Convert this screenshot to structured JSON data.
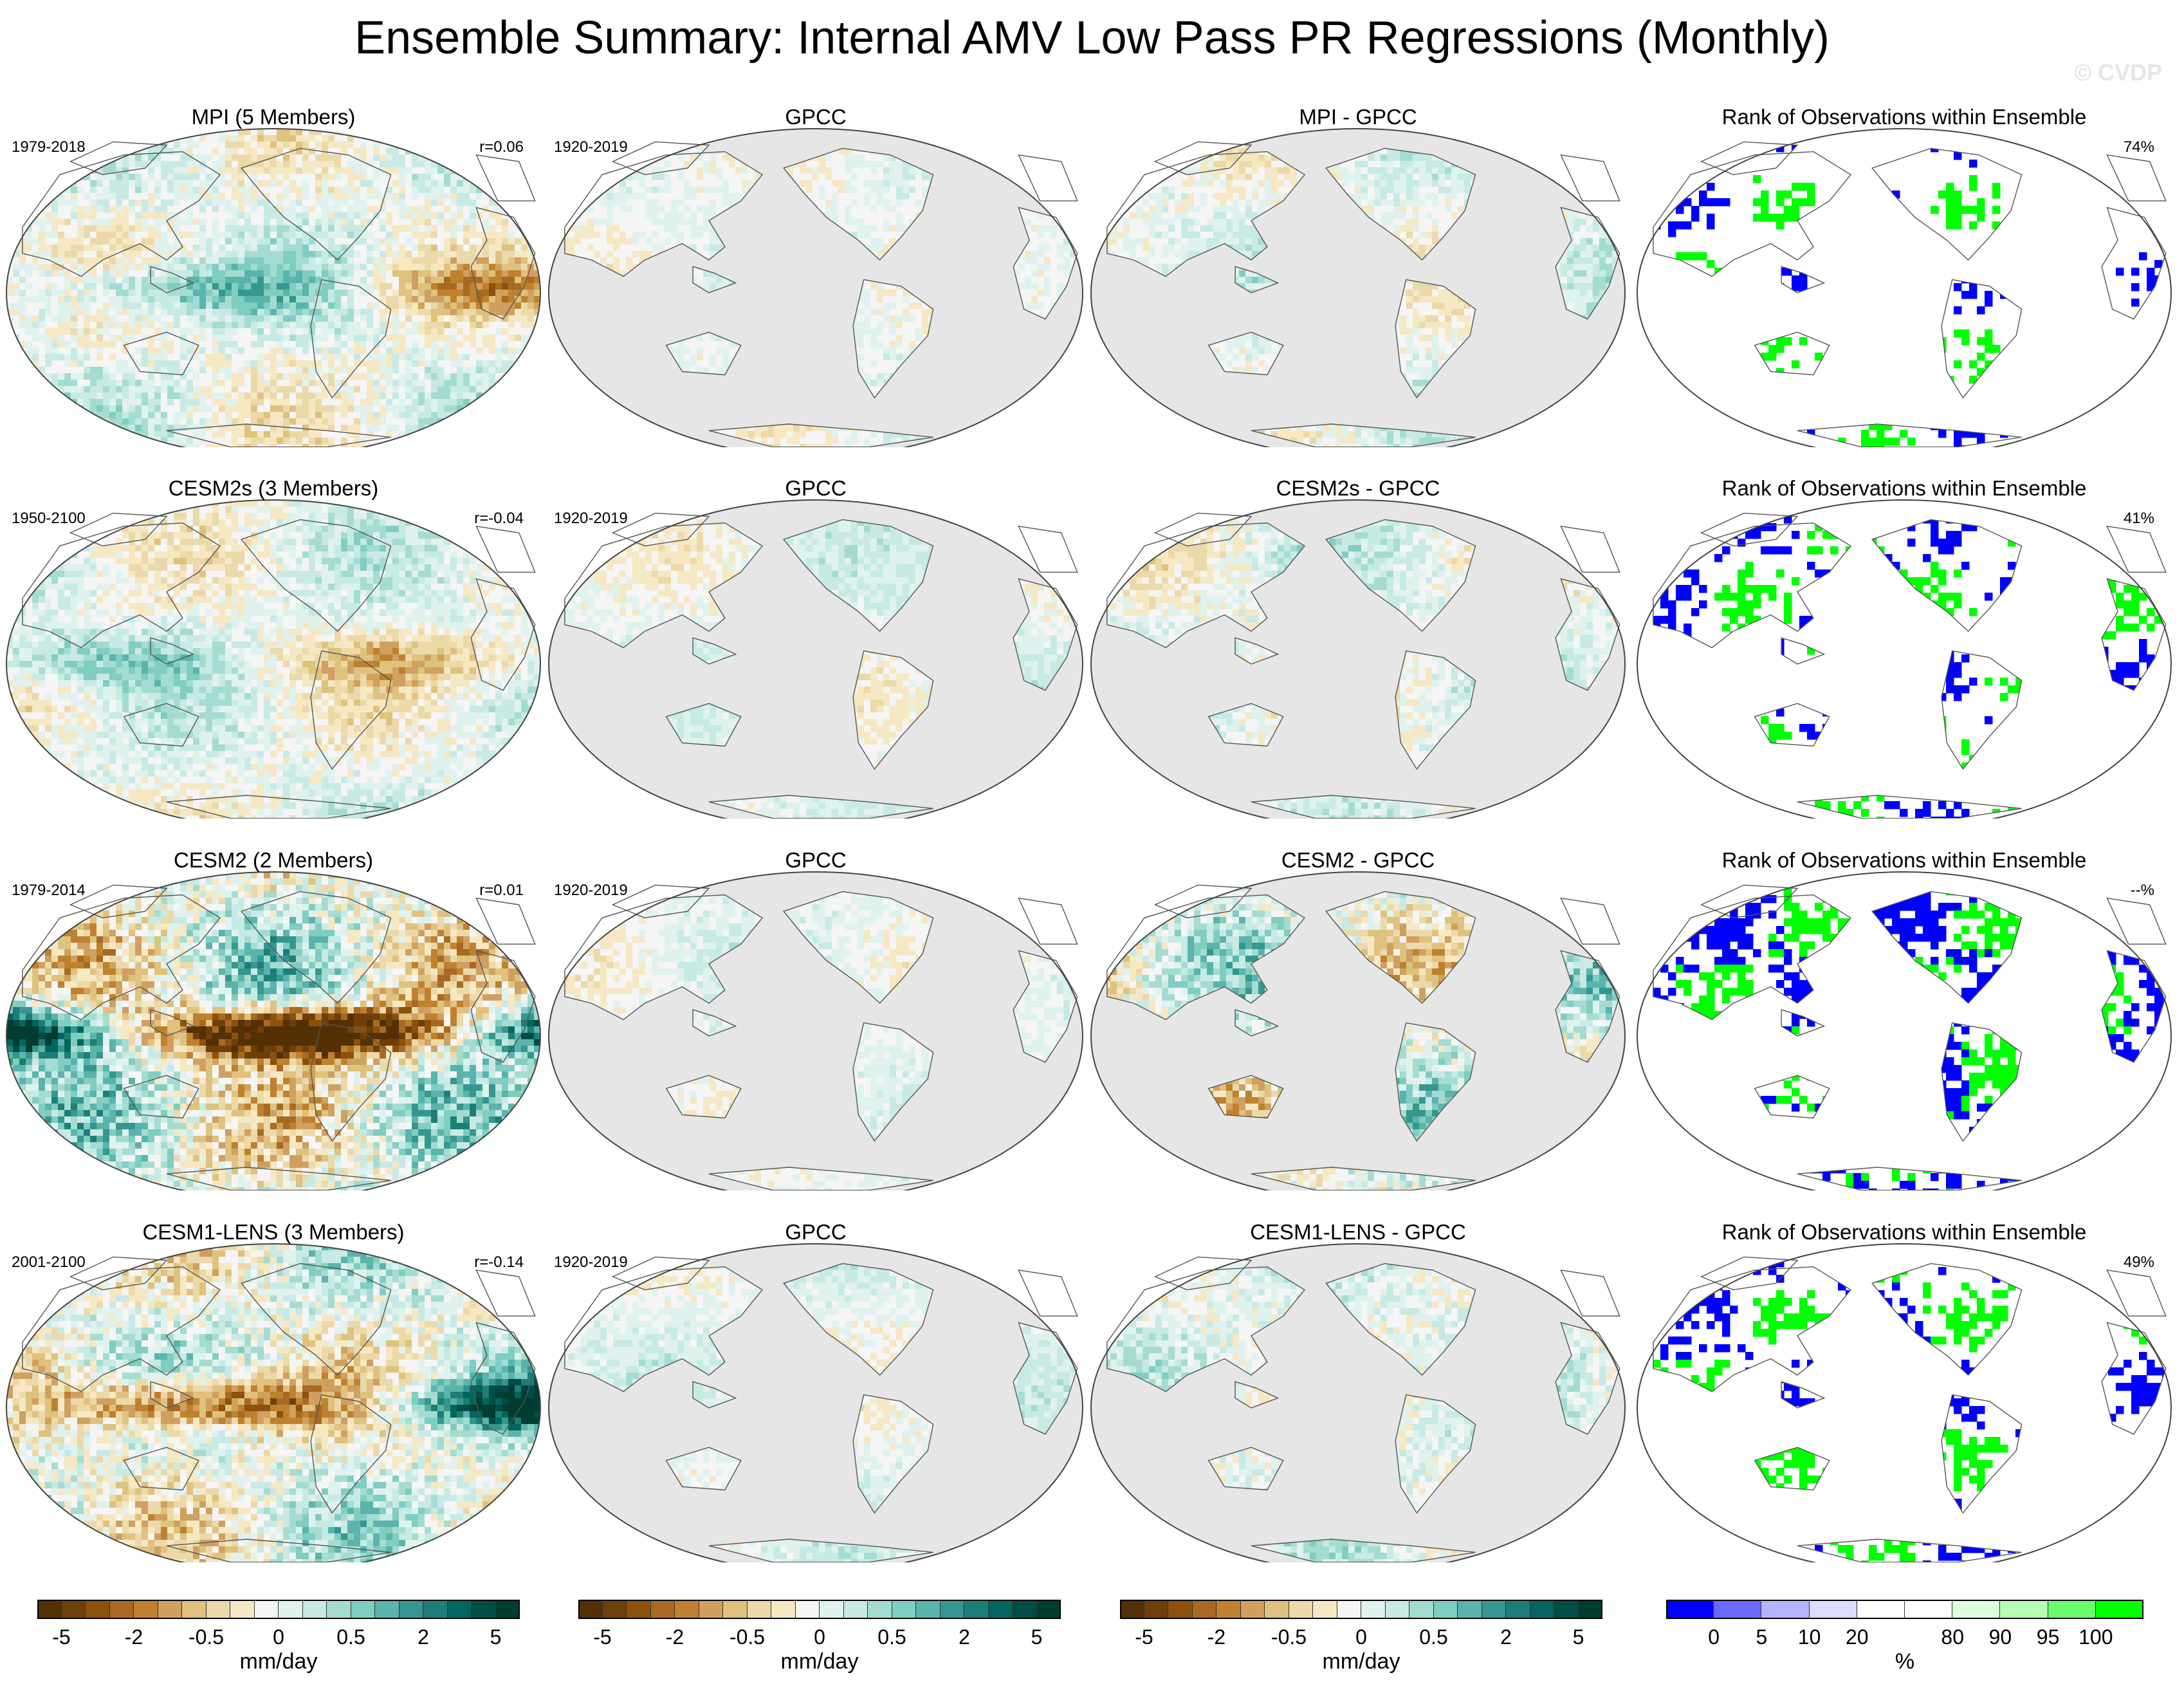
{
  "figure": {
    "title": "Ensemble Summary: Internal AMV Low Pass PR Regressions (Monthly)",
    "watermark": "© CVDP"
  },
  "rows": [
    {
      "panels": [
        {
          "title": "MPI (5 Members)",
          "left": "1979-2018",
          "right": "r=0.06",
          "kind": "model",
          "intensity": 0.55
        },
        {
          "title": "GPCC",
          "left": "1920-2019",
          "right": "",
          "kind": "obs",
          "intensity": 0.35
        },
        {
          "title": "MPI - GPCC",
          "left": "",
          "right": "",
          "kind": "diff",
          "intensity": 0.45
        },
        {
          "title": "Rank of Observations within Ensemble",
          "left": "",
          "right": "74%",
          "kind": "rank",
          "intensity": 0.35
        }
      ]
    },
    {
      "panels": [
        {
          "title": "CESM2s (3 Members)",
          "left": "1950-2100",
          "right": "r=-0.04",
          "kind": "model",
          "intensity": 0.5
        },
        {
          "title": "GPCC",
          "left": "1920-2019",
          "right": "",
          "kind": "obs",
          "intensity": 0.35
        },
        {
          "title": "CESM2s - GPCC",
          "left": "",
          "right": "",
          "kind": "diff",
          "intensity": 0.5
        },
        {
          "title": "Rank of Observations within Ensemble",
          "left": "",
          "right": "41%",
          "kind": "rank",
          "intensity": 0.6
        }
      ]
    },
    {
      "panels": [
        {
          "title": "CESM2 (2 Members)",
          "left": "1979-2014",
          "right": "r=0.01",
          "kind": "model",
          "intensity": 1.0
        },
        {
          "title": "GPCC",
          "left": "1920-2019",
          "right": "",
          "kind": "obs",
          "intensity": 0.35
        },
        {
          "title": "CESM2 - GPCC",
          "left": "",
          "right": "",
          "kind": "diff",
          "intensity": 0.85
        },
        {
          "title": "Rank of Observations within Ensemble",
          "left": "",
          "right": "--%",
          "kind": "rank",
          "intensity": 0.95
        }
      ]
    },
    {
      "panels": [
        {
          "title": "CESM1-LENS (3 Members)",
          "left": "2001-2100",
          "right": "r=-0.14",
          "kind": "model",
          "intensity": 0.8
        },
        {
          "title": "GPCC",
          "left": "1920-2019",
          "right": "",
          "kind": "obs",
          "intensity": 0.35
        },
        {
          "title": "CESM1-LENS - GPCC",
          "left": "",
          "right": "",
          "kind": "diff",
          "intensity": 0.55
        },
        {
          "title": "Rank of Observations within Ensemble",
          "left": "",
          "right": "49%",
          "kind": "rank",
          "intensity": 0.65
        }
      ]
    }
  ],
  "colorbars": {
    "precip": {
      "colors": [
        "#543005",
        "#6e3f0a",
        "#8c510a",
        "#a86a22",
        "#bf812d",
        "#d0a060",
        "#dfc27d",
        "#ecd9a9",
        "#f6e8c3",
        "#f5f5f5",
        "#dff2ee",
        "#c7eae5",
        "#a4dcd2",
        "#80cdc1",
        "#5ab4ac",
        "#35978f",
        "#1c7f77",
        "#01665e",
        "#014c44",
        "#003c30"
      ],
      "tick_labels": [
        "-5",
        "-2",
        "-0.5",
        "0",
        "0.5",
        "2",
        "5"
      ],
      "tick_index": [
        1,
        4,
        7,
        10,
        13,
        16,
        19
      ],
      "unit": "mm/day"
    },
    "rank": {
      "colors": [
        "#0000ff",
        "#6a6aff",
        "#b4b4ff",
        "#dcdcff",
        "#ffffff",
        "#ffffff",
        "#dcffdc",
        "#b4ffb4",
        "#6aff6a",
        "#00ff00"
      ],
      "tick_labels": [
        "0",
        "5",
        "10",
        "20",
        "80",
        "90",
        "95",
        "100"
      ],
      "tick_index": [
        1,
        2,
        3,
        4,
        6,
        7,
        8,
        9
      ],
      "unit": "%"
    }
  }
}
